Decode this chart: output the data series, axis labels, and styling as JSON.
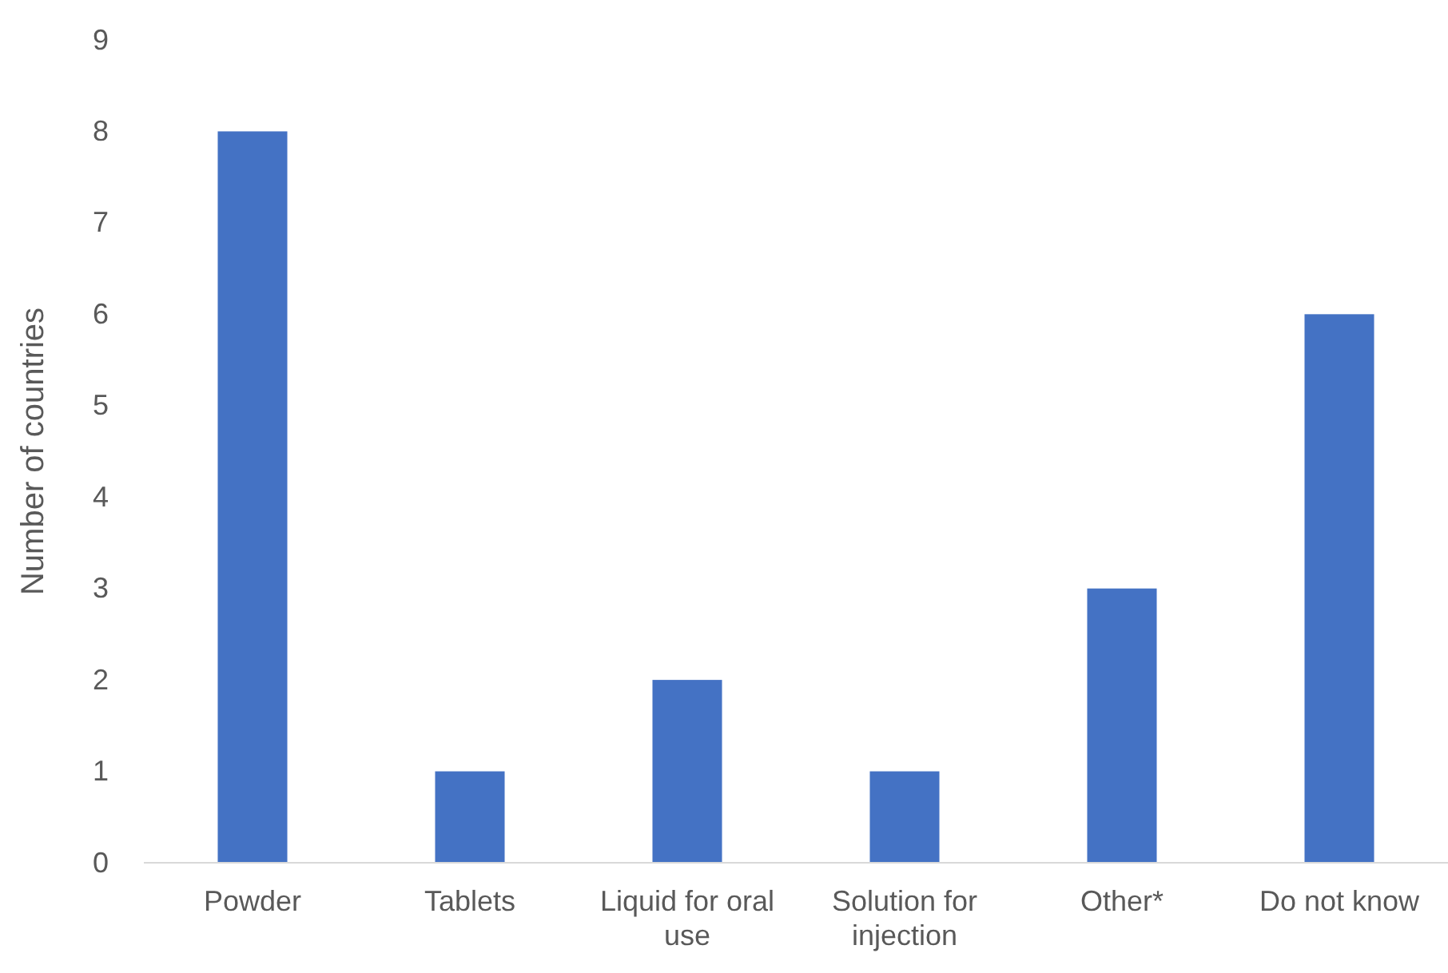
{
  "chart_data": {
    "type": "bar",
    "ylabel": "Number of countries",
    "categories": [
      "Powder",
      "Tablets",
      "Liquid for oral use",
      "Solution for injection",
      "Other*",
      "Do not know"
    ],
    "values": [
      8,
      1,
      2,
      1,
      3,
      6
    ],
    "color": "#4472c4",
    "ylim": [
      0,
      9
    ],
    "yticks": [
      0,
      1,
      2,
      3,
      4,
      5,
      6,
      7,
      8,
      9
    ],
    "grid": false
  }
}
